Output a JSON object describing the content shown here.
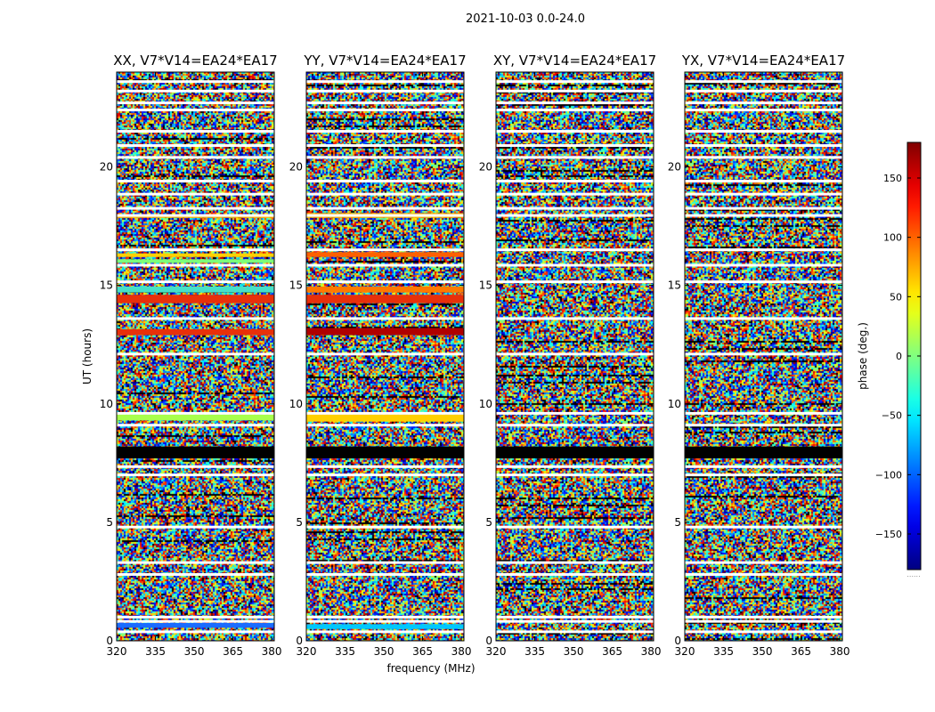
{
  "chart_data": {
    "type": "heatmap",
    "suptitle": "2021-10-03 0.0-24.0",
    "xlabel": "frequency (MHz)",
    "ylabel": "UT (hours)",
    "xlim": [
      320,
      381
    ],
    "ylim": [
      0,
      24
    ],
    "xticks": [
      320,
      335,
      350,
      365,
      380
    ],
    "yticks": [
      0,
      5,
      10,
      15,
      20
    ],
    "colorbar": {
      "label": "phase (deg.)",
      "range": [
        -180,
        180
      ],
      "ticks": [
        150,
        100,
        50,
        0,
        -50,
        -100,
        -150
      ],
      "colormap": "jet",
      "bottom_label": "......"
    },
    "flagged_color": "#ffffff",
    "panels": [
      {
        "title": "XX, V7*V14=EA24*EA17",
        "bands": [
          {
            "t0": 0.55,
            "t1": 0.75,
            "color": "#1a6cff"
          },
          {
            "t0": 7.7,
            "t1": 8.2,
            "color": "#000000"
          },
          {
            "t0": 9.3,
            "t1": 9.55,
            "color": "#a8ff4c"
          },
          {
            "t0": 12.9,
            "t1": 13.15,
            "color": "#e8300a"
          },
          {
            "t0": 14.25,
            "t1": 14.6,
            "color": "#e8300a"
          },
          {
            "t0": 14.7,
            "t1": 14.95,
            "color": "#46e0c8"
          },
          {
            "t0": 15.95,
            "t1": 16.1,
            "color": "#7cff7a"
          },
          {
            "t0": 16.2,
            "t1": 16.35,
            "color": "#ffd000"
          },
          {
            "t0": 17.85,
            "t1": 18.0,
            "color": "#ffb000"
          }
        ]
      },
      {
        "title": "YY, V7*V14=EA24*EA17",
        "bands": [
          {
            "t0": 0.5,
            "t1": 0.7,
            "color": "#00c8ff"
          },
          {
            "t0": 7.7,
            "t1": 8.2,
            "color": "#000000"
          },
          {
            "t0": 9.25,
            "t1": 9.55,
            "color": "#ffd000"
          },
          {
            "t0": 12.9,
            "t1": 13.2,
            "color": "#b00000"
          },
          {
            "t0": 14.25,
            "t1": 14.6,
            "color": "#e8300a"
          },
          {
            "t0": 14.7,
            "t1": 14.95,
            "color": "#ff7a00"
          },
          {
            "t0": 16.2,
            "t1": 16.4,
            "color": "#ff6000"
          },
          {
            "t0": 17.85,
            "t1": 18.05,
            "color": "#ffb000"
          }
        ]
      },
      {
        "title": "XY, V7*V14=EA24*EA17",
        "bands": [
          {
            "t0": 7.7,
            "t1": 8.2,
            "color": "#000000"
          }
        ]
      },
      {
        "title": "YX, V7*V14=EA24*EA17",
        "bands": [
          {
            "t0": 7.7,
            "t1": 8.2,
            "color": "#000000"
          }
        ]
      }
    ],
    "flagged_rows": [
      0.38,
      0.82,
      1.0,
      2.8,
      3.3,
      4.8,
      7.0,
      7.35,
      9.1,
      9.6,
      12.1,
      13.6,
      15.15,
      15.85,
      16.5,
      17.95,
      18.25,
      18.85,
      19.4,
      20.4,
      20.9,
      21.5,
      22.4,
      22.7,
      23.2,
      23.6
    ]
  }
}
